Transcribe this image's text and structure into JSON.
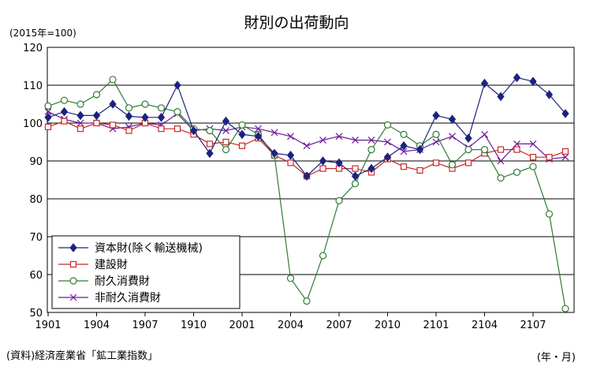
{
  "chart_data": {
    "type": "line",
    "title": "財別の出荷動向",
    "ylabel": "(2015年=100)",
    "xlabel": "(年・月)",
    "source": "(資料)経済産業省「鉱工業指数」",
    "ylim": [
      50,
      120
    ],
    "yticks": [
      50,
      60,
      70,
      80,
      90,
      100,
      110,
      120
    ],
    "x": [
      "1901",
      "1902",
      "1903",
      "1904",
      "1905",
      "1906",
      "1907",
      "1908",
      "1909",
      "1910",
      "1911",
      "1912",
      "2001",
      "2002",
      "2003",
      "2004",
      "2005",
      "2006",
      "2007",
      "2008",
      "2009",
      "2010",
      "2011",
      "2012",
      "2101",
      "2102",
      "2103",
      "2104",
      "2105",
      "2106",
      "2107",
      "2108",
      "2109"
    ],
    "xticks": [
      "1901",
      "1904",
      "1907",
      "1910",
      "2001",
      "2004",
      "2007",
      "2010",
      "2101",
      "2104",
      "2107"
    ],
    "grid": true,
    "legend_position": "bottom-left",
    "series": [
      {
        "name": "資本財(除く輸送機械)",
        "color": "#1a237e",
        "marker": "diamond",
        "values": [
          101.5,
          103.0,
          102.0,
          102.0,
          105.0,
          101.8,
          101.5,
          101.5,
          110.0,
          98.0,
          92.0,
          100.5,
          97.0,
          96.5,
          92.0,
          91.5,
          86.0,
          90.0,
          89.5,
          86.0,
          88.0,
          91.0,
          94.0,
          93.0,
          102.0,
          101.0,
          96.0,
          110.5,
          107.0,
          112.0,
          111.0,
          107.5,
          102.5
        ]
      },
      {
        "name": "建設財",
        "color": "#c62828",
        "marker": "square",
        "values": [
          99.0,
          100.5,
          98.5,
          100.0,
          99.5,
          98.0,
          100.0,
          98.5,
          98.5,
          97.0,
          94.5,
          95.0,
          94.0,
          96.0,
          91.5,
          89.5,
          86.0,
          88.0,
          88.0,
          88.0,
          87.0,
          90.5,
          88.5,
          87.5,
          89.5,
          88.0,
          89.5,
          92.0,
          93.0,
          93.0,
          91.0,
          91.0,
          92.5
        ]
      },
      {
        "name": "耐久消費財",
        "color": "#2e7d32",
        "marker": "circle",
        "values": [
          104.5,
          106.0,
          105.0,
          107.5,
          111.5,
          104.0,
          105.0,
          104.0,
          103.0,
          98.5,
          98.0,
          93.0,
          99.5,
          97.0,
          91.5,
          59.0,
          53.0,
          65.0,
          79.5,
          84.0,
          93.0,
          99.5,
          97.0,
          94.0,
          97.0,
          89.0,
          93.0,
          93.0,
          85.5,
          87.0,
          88.5,
          76.0,
          51.0
        ]
      },
      {
        "name": "非耐久消費財",
        "color": "#6a1b9a",
        "marker": "x",
        "values": [
          103.0,
          101.0,
          100.0,
          100.0,
          98.5,
          99.0,
          100.0,
          99.5,
          102.5,
          98.0,
          98.5,
          98.0,
          99.0,
          98.5,
          97.5,
          96.5,
          94.0,
          95.5,
          96.5,
          95.5,
          95.5,
          95.0,
          92.5,
          93.0,
          95.0,
          96.5,
          93.5,
          97.0,
          90.0,
          94.5,
          94.5,
          90.5,
          91.0
        ]
      }
    ]
  }
}
